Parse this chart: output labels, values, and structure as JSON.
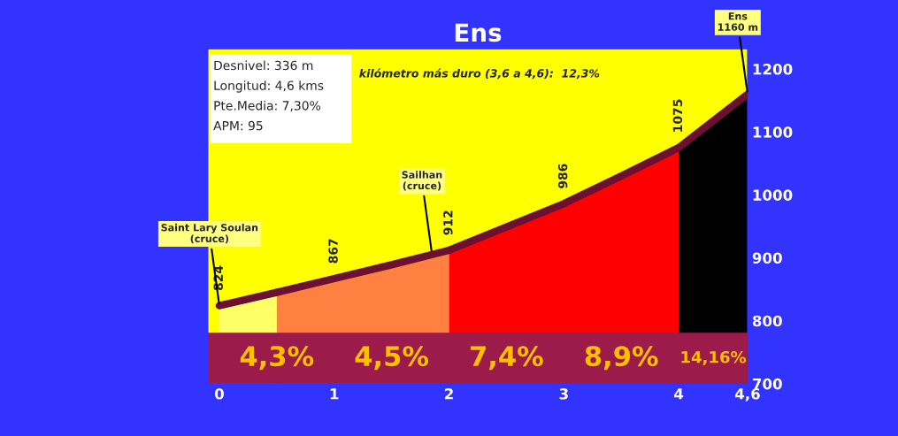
{
  "chart_data": {
    "type": "area",
    "title": "Ens",
    "series": [
      {
        "x": [
          0,
          0.5
        ],
        "values": [
          824,
          845
        ],
        "color": "#ffff66",
        "value_labels": [
          "824",
          null
        ]
      },
      {
        "x": [
          0.5,
          1,
          1.5,
          2
        ],
        "values": [
          845,
          867,
          889,
          912
        ],
        "color": "#ff8040",
        "value_labels": [
          null,
          "867",
          null,
          "912"
        ]
      },
      {
        "x": [
          2,
          2.5,
          3,
          3.5,
          4
        ],
        "values": [
          912,
          949,
          986,
          1030,
          1075
        ],
        "color": "#ff0000",
        "value_labels": [
          null,
          null,
          "986",
          null,
          "1075"
        ]
      },
      {
        "x": [
          4,
          4.6
        ],
        "values": [
          1075,
          1160
        ],
        "color": "#000000",
        "value_labels": [
          null,
          null
        ]
      }
    ],
    "xlim": [
      -0.1,
      4.6
    ],
    "xticks": [
      0,
      1,
      2,
      3,
      4,
      {
        "value": 4.6,
        "label": "4,6"
      }
    ],
    "ylim": [
      700,
      1232
    ],
    "yticks": [
      700,
      800,
      900,
      1000,
      1100,
      1200
    ],
    "bands": [
      {
        "axis": "y",
        "from": 700,
        "to": 780,
        "color": "#9b1b4b"
      }
    ],
    "annotations": [
      "Desnivel: 336 m",
      "Longitud: 4,6 kms",
      "Pte.Media: 7,30%",
      "APM: 95",
      "kilómetro más duro (3,6 a 4,6):  12,3%",
      "4,3%",
      "4,5%",
      "7,4%",
      "8,9%",
      "14,16%",
      {
        "text": "Saint Lary Soulan\n(cruce)",
        "x": 0,
        "y": 824
      },
      {
        "text": "Sailhan\n(cruce)",
        "x": 1.85,
        "y": 908
      },
      {
        "text": "Ens\n1160 m",
        "x": 4.6,
        "y": 1160
      }
    ],
    "grid": false,
    "legend": false
  }
}
